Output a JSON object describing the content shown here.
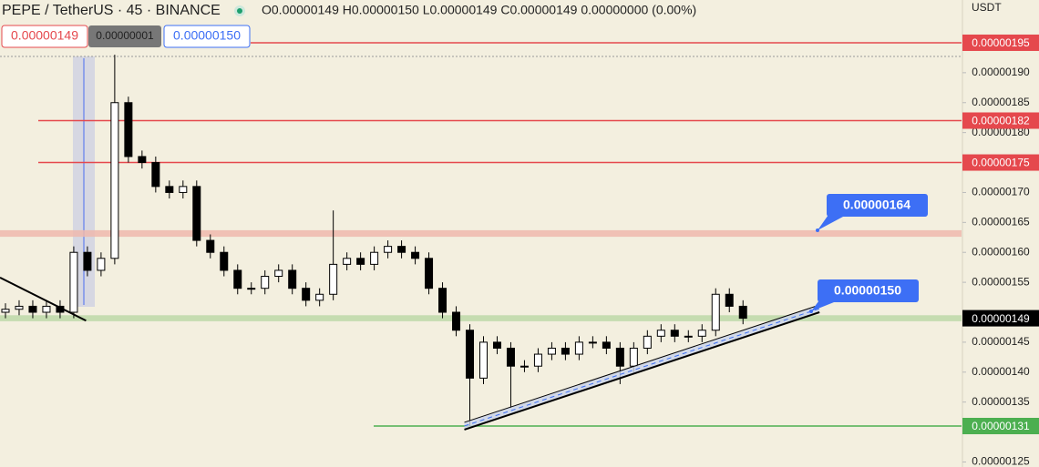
{
  "header": {
    "symbol": "PEPE / TetherUS · 45 · BINANCE",
    "ohlc": "O0.00000149 H0.00000150 L0.00000149 C0.00000149 0.00000000 (0.00%)",
    "currency": "USDT",
    "sell": "0.00000149",
    "spread": "0.00000001",
    "buy": "0.00000150"
  },
  "chart_data": {
    "type": "candlestick",
    "open": [
      1.5e-06,
      1.505e-06,
      1.51e-06,
      1.5e-06,
      1.51e-06,
      1.5e-06,
      1.6e-06,
      1.57e-06,
      1.59e-06,
      1.85e-06,
      1.76e-06,
      1.75e-06,
      1.71e-06,
      1.7e-06,
      1.71e-06,
      1.62e-06,
      1.6e-06,
      1.57e-06,
      1.54e-06,
      1.54e-06,
      1.56e-06,
      1.57e-06,
      1.54e-06,
      1.52e-06,
      1.53e-06,
      1.58e-06,
      1.59e-06,
      1.58e-06,
      1.6e-06,
      1.61e-06,
      1.6e-06,
      1.59e-06,
      1.54e-06,
      1.5e-06,
      1.47e-06,
      1.39e-06,
      1.45e-06,
      1.44e-06,
      1.41e-06,
      1.41e-06,
      1.43e-06,
      1.44e-06,
      1.43e-06,
      1.45e-06,
      1.45e-06,
      1.44e-06,
      1.41e-06,
      1.44e-06,
      1.46e-06,
      1.47e-06,
      1.46e-06,
      1.46e-06,
      1.47e-06,
      1.53e-06,
      1.51e-06
    ],
    "high": [
      1.515e-06,
      1.52e-06,
      1.52e-06,
      1.52e-06,
      1.52e-06,
      1.61e-06,
      1.61e-06,
      1.6e-06,
      1.93e-06,
      1.86e-06,
      1.77e-06,
      1.76e-06,
      1.72e-06,
      1.72e-06,
      1.72e-06,
      1.63e-06,
      1.61e-06,
      1.58e-06,
      1.55e-06,
      1.57e-06,
      1.58e-06,
      1.58e-06,
      1.55e-06,
      1.54e-06,
      1.67e-06,
      1.6e-06,
      1.6e-06,
      1.61e-06,
      1.62e-06,
      1.62e-06,
      1.61e-06,
      1.6e-06,
      1.55e-06,
      1.51e-06,
      1.48e-06,
      1.46e-06,
      1.46e-06,
      1.45e-06,
      1.42e-06,
      1.44e-06,
      1.45e-06,
      1.45e-06,
      1.46e-06,
      1.46e-06,
      1.46e-06,
      1.45e-06,
      1.45e-06,
      1.47e-06,
      1.48e-06,
      1.48e-06,
      1.47e-06,
      1.48e-06,
      1.54e-06,
      1.54e-06,
      1.52e-06
    ],
    "low": [
      1.49e-06,
      1.495e-06,
      1.49e-06,
      1.49e-06,
      1.49e-06,
      1.49e-06,
      1.56e-06,
      1.56e-06,
      1.58e-06,
      1.75e-06,
      1.74e-06,
      1.7e-06,
      1.69e-06,
      1.69e-06,
      1.61e-06,
      1.59e-06,
      1.56e-06,
      1.53e-06,
      1.53e-06,
      1.53e-06,
      1.55e-06,
      1.53e-06,
      1.51e-06,
      1.51e-06,
      1.52e-06,
      1.57e-06,
      1.57e-06,
      1.57e-06,
      1.59e-06,
      1.59e-06,
      1.58e-06,
      1.53e-06,
      1.49e-06,
      1.46e-06,
      1.31e-06,
      1.38e-06,
      1.43e-06,
      1.34e-06,
      1.4e-06,
      1.4e-06,
      1.42e-06,
      1.42e-06,
      1.42e-06,
      1.44e-06,
      1.43e-06,
      1.38e-06,
      1.4e-06,
      1.43e-06,
      1.45e-06,
      1.45e-06,
      1.45e-06,
      1.45e-06,
      1.46e-06,
      1.5e-06,
      1.48e-06
    ],
    "close": [
      1.505e-06,
      1.51e-06,
      1.5e-06,
      1.51e-06,
      1.5e-06,
      1.6e-06,
      1.57e-06,
      1.59e-06,
      1.85e-06,
      1.76e-06,
      1.75e-06,
      1.71e-06,
      1.7e-06,
      1.71e-06,
      1.62e-06,
      1.6e-06,
      1.57e-06,
      1.54e-06,
      1.54e-06,
      1.56e-06,
      1.57e-06,
      1.54e-06,
      1.52e-06,
      1.53e-06,
      1.58e-06,
      1.59e-06,
      1.58e-06,
      1.6e-06,
      1.61e-06,
      1.6e-06,
      1.59e-06,
      1.54e-06,
      1.5e-06,
      1.47e-06,
      1.39e-06,
      1.45e-06,
      1.44e-06,
      1.41e-06,
      1.41e-06,
      1.43e-06,
      1.44e-06,
      1.43e-06,
      1.45e-06,
      1.45e-06,
      1.44e-06,
      1.41e-06,
      1.44e-06,
      1.46e-06,
      1.47e-06,
      1.46e-06,
      1.46e-06,
      1.47e-06,
      1.53e-06,
      1.51e-06,
      1.49e-06
    ],
    "up_color": "#ffffff",
    "down_color": "#000000",
    "xlim": [
      -0.4,
      70
    ],
    "ylim": [
      1.2416e-06,
      2.0214e-06
    ],
    "yticks": [
      {
        "value": 1.9e-06,
        "label": "0.00000190"
      },
      {
        "value": 1.85e-06,
        "label": "0.00000185"
      },
      {
        "value": 1.8e-06,
        "label": "0.00000180"
      },
      {
        "value": 1.7e-06,
        "label": "0.00000170"
      },
      {
        "value": 1.65e-06,
        "label": "0.00000165"
      },
      {
        "value": 1.6e-06,
        "label": "0.00000160"
      },
      {
        "value": 1.55e-06,
        "label": "0.00000155"
      },
      {
        "value": 1.45e-06,
        "label": "0.00000145"
      },
      {
        "value": 1.4e-06,
        "label": "0.00000140"
      },
      {
        "value": 1.35e-06,
        "label": "0.00000135"
      },
      {
        "value": 1.25e-06,
        "label": "0.00000125"
      }
    ],
    "grid": false,
    "levels": [
      {
        "value": 1.95e-06,
        "label": "0.00000195",
        "color": "#e5484d"
      },
      {
        "value": 1.82e-06,
        "label": "0.00000182",
        "color": "#e5484d"
      },
      {
        "value": 1.75e-06,
        "label": "0.00000175",
        "color": "#e5484d"
      },
      {
        "value": 1.49e-06,
        "label": "0.00000149",
        "color": "#000000"
      },
      {
        "value": 1.31e-06,
        "label": "0.00000131",
        "color": "#4caf50"
      }
    ],
    "zones": [
      {
        "from": 1.626e-06,
        "to": 1.637e-06,
        "color": "#eeb9ae"
      },
      {
        "from": 1.485e-06,
        "to": 1.495e-06,
        "color": "#bcd8a8"
      }
    ],
    "trendlines": [
      {
        "x": [
          33.6,
          59.6
        ],
        "y": [
          1.304e-06,
          1.5e-06
        ],
        "color": "#000000"
      },
      {
        "x": [
          -0.4,
          5.9
        ],
        "y": [
          1.558e-06,
          1.486e-06
        ],
        "color": "#000000"
      }
    ],
    "callouts": [
      {
        "text": "0.00000164",
        "color": "#3d6ff5"
      },
      {
        "text": "0.00000150",
        "color": "#3d6ff5"
      }
    ]
  }
}
